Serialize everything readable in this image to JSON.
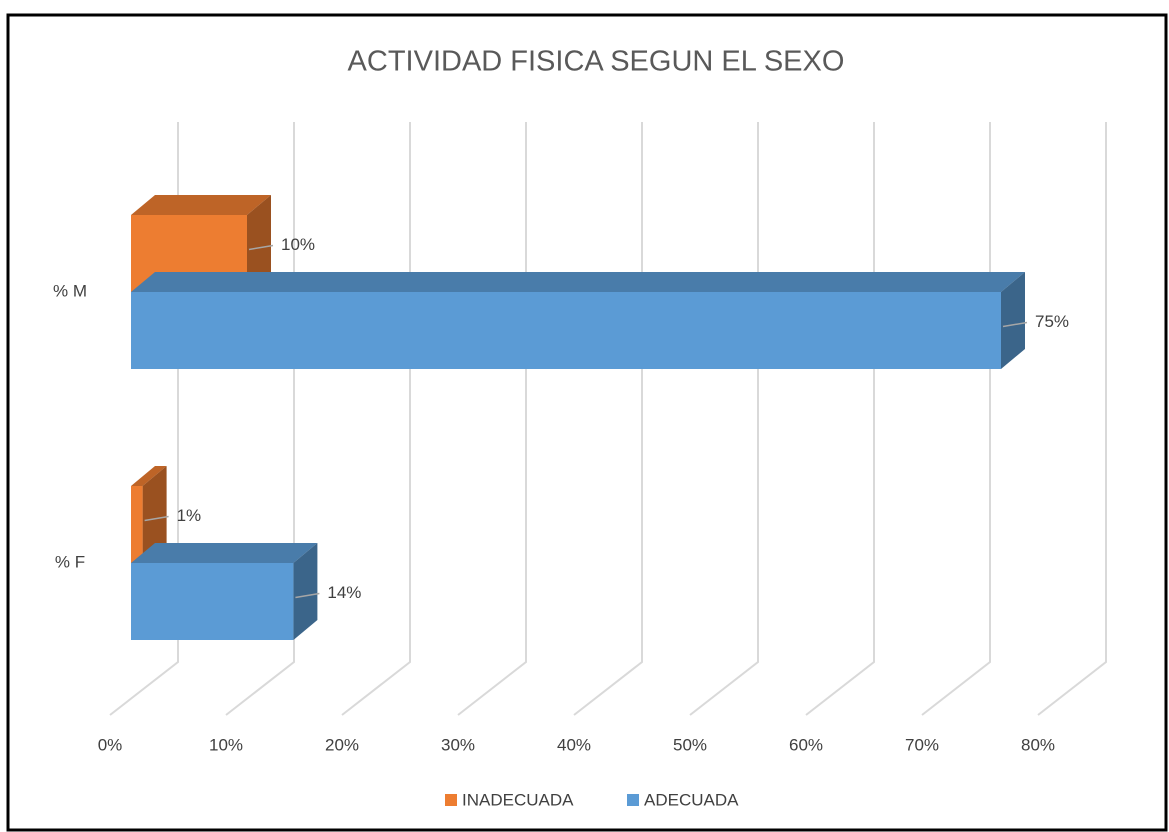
{
  "chart_data": {
    "type": "bar3d_horizontal",
    "title": "ACTIVIDAD FISICA SEGUN EL SEXO",
    "categories": [
      "% M",
      "% F"
    ],
    "series": [
      {
        "name": "INADECUADA",
        "color": "#ED7D31",
        "values": [
          10,
          1
        ],
        "value_labels": [
          "10%",
          "1%"
        ]
      },
      {
        "name": "ADECUADA",
        "color": "#5B9BD5",
        "values": [
          75,
          14
        ],
        "value_labels": [
          "75%",
          "14%"
        ]
      }
    ],
    "xlim": [
      0,
      80
    ],
    "xticks": [
      {
        "value": 0,
        "label": "0%"
      },
      {
        "value": 10,
        "label": "10%"
      },
      {
        "value": 20,
        "label": "20%"
      },
      {
        "value": 30,
        "label": "30%"
      },
      {
        "value": 40,
        "label": "40%"
      },
      {
        "value": 50,
        "label": "50%"
      },
      {
        "value": 60,
        "label": "60%"
      },
      {
        "value": 70,
        "label": "70%"
      },
      {
        "value": 80,
        "label": "80%"
      }
    ],
    "grid": true,
    "legend": "bottom"
  }
}
